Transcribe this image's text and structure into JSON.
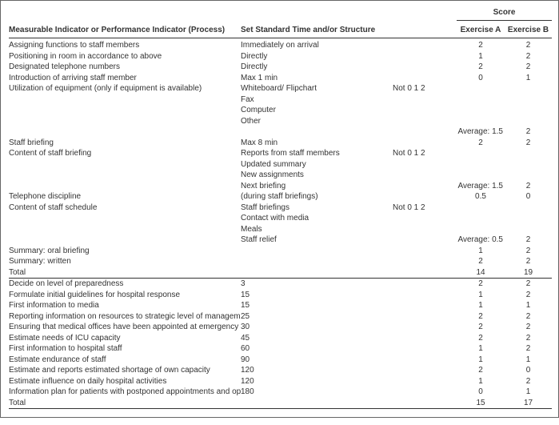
{
  "header": {
    "score": "Score",
    "col_indicator": "Measurable Indicator or Performance Indicator (Process)",
    "col_standard": "Set Standard Time and/or Structure",
    "col_a": "Exercise A",
    "col_b": "Exercise B"
  },
  "not012": "Not   0   1   2",
  "sec1": {
    "r1": {
      "ind": "Assigning functions to staff members",
      "std": "Immediately on arrival",
      "a": "2",
      "b": "2"
    },
    "r2": {
      "ind": "Positioning in room in accordance to above",
      "std": "Directly",
      "a": "1",
      "b": "2"
    },
    "r3": {
      "ind": "Designated telephone numbers",
      "std": "Directly",
      "a": "2",
      "b": "2"
    },
    "r4": {
      "ind": "Introduction of arriving staff member",
      "std": "Max 1 min",
      "a": "0",
      "b": "1"
    },
    "r5": {
      "ind": "Utilization of equipment (only if equipment is available)",
      "std": "Whiteboard/ Flipchart"
    },
    "r6": {
      "std": "Fax"
    },
    "r7": {
      "std": "Computer"
    },
    "r8": {
      "std": "Other"
    },
    "avg1": {
      "label": "Average: 1.5",
      "b": "2"
    },
    "r9": {
      "ind": "Staff briefing",
      "std": "Max 8 min",
      "a": "2",
      "b": "2"
    },
    "r10": {
      "ind": "Content of staff briefing",
      "std": "Reports from staff members"
    },
    "r11": {
      "std": "Updated summary"
    },
    "r12": {
      "std": "New assignments"
    },
    "r13": {
      "std": "Next briefing",
      "avg": "Average: 1.5",
      "b": "2"
    },
    "r14": {
      "ind": "Telephone discipline",
      "std": "(during staff briefings)",
      "a": "0.5",
      "b": "0"
    },
    "r15": {
      "ind": "Content of staff schedule",
      "std": "Staff briefings"
    },
    "r16": {
      "std": "Contact with media"
    },
    "r17": {
      "std": "Meals"
    },
    "r18": {
      "std": "Staff relief",
      "avg": "Average: 0.5",
      "b": "2"
    },
    "r19": {
      "ind": "Summary: oral briefing",
      "a": "1",
      "b": "2"
    },
    "r20": {
      "ind": "Summary: written",
      "a": "2",
      "b": "2"
    },
    "tot": {
      "ind": "Total",
      "a": "14",
      "b": "19"
    }
  },
  "sec2": {
    "r1": {
      "ind": "Decide on level of preparedness",
      "std": "3",
      "a": "2",
      "b": "2"
    },
    "r2": {
      "ind": "Formulate initial guidelines for hospital response",
      "std": "15",
      "a": "1",
      "b": "2"
    },
    "r3": {
      "ind": "First information to media",
      "std": "15",
      "a": "1",
      "b": "1"
    },
    "r4": {
      "ind": "Reporting information on resources to strategic level of management",
      "std": "25",
      "a": "2",
      "b": "2"
    },
    "r5": {
      "ind": "Ensuring that medical offices have been appointed at emergency and surgery",
      "std": "30",
      "a": "2",
      "b": "2"
    },
    "r6": {
      "ind": "Estimate needs of ICU capacity",
      "std": "45",
      "a": "2",
      "b": "2"
    },
    "r7": {
      "ind": "First information to hospital staff",
      "std": "60",
      "a": "1",
      "b": "2"
    },
    "r8": {
      "ind": "Estimate endurance of staff",
      "std": "90",
      "a": "1",
      "b": "1"
    },
    "r9": {
      "ind": "Estimate and reports estimated shortage of own capacity",
      "std": "120",
      "a": "2",
      "b": "0"
    },
    "r10": {
      "ind": "Estimate influence on daily hospital activities",
      "std": "120",
      "a": "1",
      "b": "2"
    },
    "r11": {
      "ind": "Information plan for patients with postponed appointments and operations",
      "std": "180",
      "a": "0",
      "b": "1"
    },
    "tot": {
      "ind": "Total",
      "a": "15",
      "b": "17"
    }
  }
}
